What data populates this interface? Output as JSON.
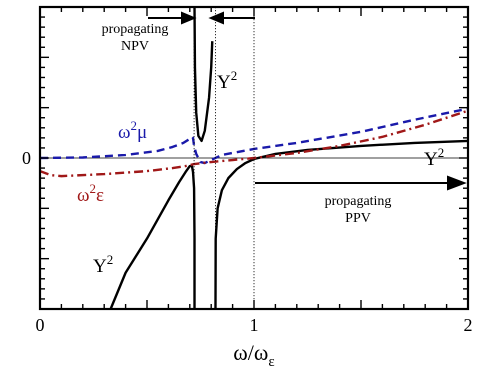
{
  "chart_data": {
    "type": "line",
    "xlabel": {
      "base": "ω/ω",
      "sub": "ε"
    },
    "ylabel": "",
    "xlim": [
      0,
      2
    ],
    "ylim": [
      -1.5,
      1.5
    ],
    "x_ticks": [
      {
        "value": 0,
        "label": "0"
      },
      {
        "value": 1,
        "label": "1"
      },
      {
        "value": 2,
        "label": "2"
      }
    ],
    "y_ticks": [
      {
        "value": 0,
        "label": "0"
      }
    ],
    "grid": false,
    "reference_lines": [
      0.72,
      0.82,
      1.0
    ],
    "series": [
      {
        "name": "Y²",
        "color": "#000000",
        "style": "solid",
        "segments": [
          [
            [
              0.33,
              -1.5
            ],
            [
              0.4,
              -1.14
            ],
            [
              0.45,
              -0.97
            ],
            [
              0.5,
              -0.8
            ],
            [
              0.55,
              -0.61
            ],
            [
              0.6,
              -0.42
            ],
            [
              0.65,
              -0.24
            ],
            [
              0.68,
              -0.14
            ],
            [
              0.7,
              -0.08
            ],
            [
              0.71,
              -0.08
            ],
            [
              0.715,
              -0.14
            ],
            [
              0.72,
              -0.3
            ],
            [
              0.722,
              -0.8
            ],
            [
              0.722,
              -1.5
            ]
          ],
          [
            [
              0.722,
              1.5
            ],
            [
              0.724,
              0.9
            ],
            [
              0.73,
              0.45
            ],
            [
              0.74,
              0.22
            ],
            [
              0.755,
              0.17
            ],
            [
              0.77,
              0.27
            ],
            [
              0.79,
              0.6
            ],
            [
              0.8,
              0.9
            ],
            [
              0.805,
              1.16
            ]
          ],
          [
            [
              0.82,
              -1.5
            ],
            [
              0.821,
              -0.8
            ],
            [
              0.83,
              -0.5
            ],
            [
              0.85,
              -0.32
            ],
            [
              0.88,
              -0.2
            ],
            [
              0.92,
              -0.11
            ],
            [
              0.96,
              -0.05
            ],
            [
              1.0,
              -0.01
            ],
            [
              1.1,
              0.04
            ],
            [
              1.25,
              0.08
            ],
            [
              1.5,
              0.12
            ],
            [
              1.75,
              0.15
            ],
            [
              2.0,
              0.17
            ]
          ]
        ]
      },
      {
        "name": "ω²μ",
        "color": "#1a1aaa",
        "style": "dashed",
        "segments": [
          [
            [
              0.0,
              0.0
            ],
            [
              0.2,
              0.005
            ],
            [
              0.4,
              0.03
            ],
            [
              0.55,
              0.07
            ],
            [
              0.62,
              0.11
            ],
            [
              0.67,
              0.15
            ],
            [
              0.7,
              0.19
            ],
            [
              0.71,
              0.21
            ],
            [
              0.715,
              0.2
            ],
            [
              0.72,
              0.12
            ],
            [
              0.73,
              0.04
            ],
            [
              0.75,
              -0.04
            ],
            [
              0.77,
              -0.05
            ],
            [
              0.8,
              -0.02
            ],
            [
              0.85,
              0.03
            ],
            [
              1.0,
              0.09
            ],
            [
              1.2,
              0.15
            ],
            [
              1.5,
              0.26
            ],
            [
              1.75,
              0.38
            ],
            [
              2.0,
              0.49
            ]
          ]
        ]
      },
      {
        "name": "ω²ε",
        "color": "#a01818",
        "style": "dashdot",
        "segments": [
          [
            [
              0.0,
              -0.13
            ],
            [
              0.05,
              -0.17
            ],
            [
              0.1,
              -0.18
            ],
            [
              0.3,
              -0.16
            ],
            [
              0.5,
              -0.13
            ],
            [
              0.62,
              -0.1
            ],
            [
              0.68,
              -0.08
            ],
            [
              0.72,
              -0.06
            ],
            [
              0.8,
              -0.04
            ],
            [
              0.9,
              -0.02
            ],
            [
              1.0,
              0.0
            ],
            [
              1.2,
              0.05
            ],
            [
              1.4,
              0.12
            ],
            [
              1.6,
              0.21
            ],
            [
              1.8,
              0.33
            ],
            [
              2.0,
              0.47
            ]
          ]
        ]
      }
    ],
    "annotations": [
      {
        "id": "propagating-npv",
        "lines": [
          "propagating",
          "NPV"
        ]
      },
      {
        "id": "propagating-ppv",
        "lines": [
          "propagating",
          "PPV"
        ]
      },
      {
        "id": "y2-upper",
        "base": "Y",
        "sup": "2"
      },
      {
        "id": "y2-right",
        "base": "Y",
        "sup": "2"
      },
      {
        "id": "y2-lower",
        "base": "Y",
        "sup": "2"
      },
      {
        "id": "omega2-mu",
        "base": "ω",
        "sup": "2",
        "tail": "μ"
      },
      {
        "id": "omega2-eps",
        "base": "ω",
        "sup": "2",
        "tail": "ε"
      }
    ]
  }
}
